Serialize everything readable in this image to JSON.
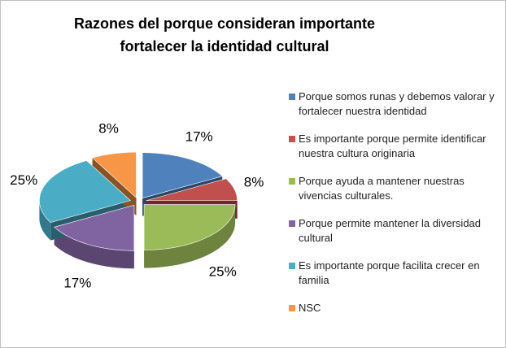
{
  "chart_data": {
    "type": "pie3d",
    "title": [
      "Razones del porque consideran importante",
      "fortalecer la identidad cultural"
    ],
    "categories": [
      "Porque somos runas y debemos valorar y fortalecer nuestra identidad",
      "Es importante porque permite identificar nuestra cultura originaria",
      "Porque ayuda a mantener nuestras vivencias culturales.",
      "Porque permite mantener la diversidad cultural",
      "Es importante porque facilita crecer en familia",
      "NSC"
    ],
    "values": [
      17,
      8,
      25,
      17,
      25,
      8
    ],
    "value_labels": [
      "17%",
      "8%",
      "25%",
      "17%",
      "25%",
      "8%"
    ],
    "colors": [
      "#4f81bd",
      "#c0504d",
      "#9bbb59",
      "#8064a2",
      "#4bacc6",
      "#f79646"
    ],
    "legend": "right"
  }
}
